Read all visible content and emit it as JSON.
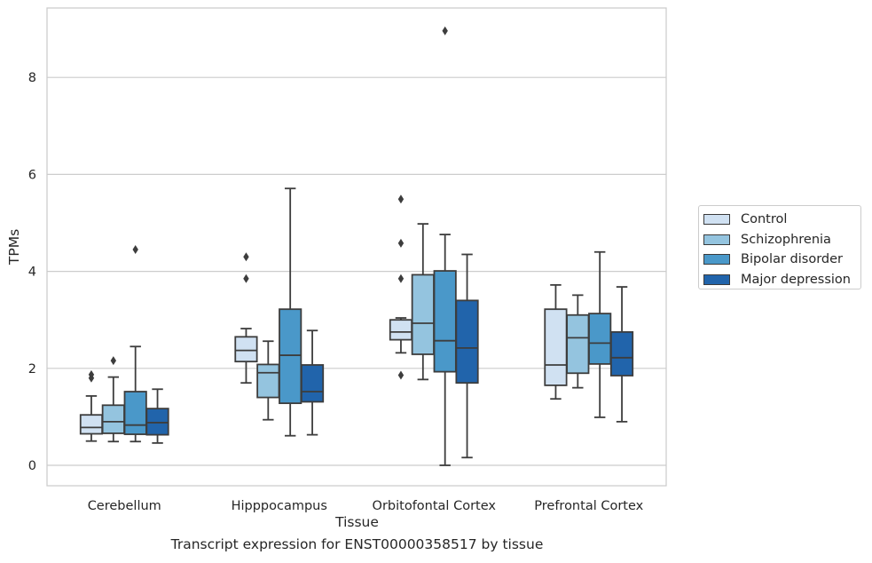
{
  "chart_data": {
    "type": "box",
    "title": "",
    "caption": "Transcript expression for ENST00000358517 by tissue",
    "xlabel": "Tissue",
    "ylabel": "TPMs",
    "ylim": [
      -0.4,
      9.65
    ],
    "yticks": [
      0,
      2,
      4,
      6,
      8
    ],
    "grid": true,
    "legend_position": "right",
    "categories": [
      "Cerebellum",
      "Hipppocampus",
      "Orbitofontal Cortex",
      "Prefrontal Cortex"
    ],
    "series": [
      {
        "name": "Control",
        "color": "#d0e1f2",
        "boxes": [
          {
            "whisker_low": 0.5,
            "q1": 0.65,
            "median": 0.78,
            "q3": 1.04,
            "whisker_high": 1.43,
            "outliers": [
              1.8,
              1.87
            ]
          },
          {
            "whisker_low": 1.7,
            "q1": 2.14,
            "median": 2.37,
            "q3": 2.65,
            "whisker_high": 2.82,
            "outliers": [
              3.85,
              4.3
            ]
          },
          {
            "whisker_low": 2.32,
            "q1": 2.59,
            "median": 2.75,
            "q3": 3.0,
            "whisker_high": 3.04,
            "outliers": [
              1.86,
              3.85,
              4.58,
              5.49
            ]
          },
          {
            "whisker_low": 1.37,
            "q1": 1.65,
            "median": 2.07,
            "q3": 3.22,
            "whisker_high": 3.72,
            "outliers": []
          }
        ]
      },
      {
        "name": "Schizophrenia",
        "color": "#94c4df",
        "boxes": [
          {
            "whisker_low": 0.49,
            "q1": 0.66,
            "median": 0.9,
            "q3": 1.24,
            "whisker_high": 1.82,
            "outliers": [
              2.16
            ]
          },
          {
            "whisker_low": 0.94,
            "q1": 1.4,
            "median": 1.91,
            "q3": 2.08,
            "whisker_high": 2.56,
            "outliers": []
          },
          {
            "whisker_low": 1.77,
            "q1": 2.29,
            "median": 2.93,
            "q3": 3.93,
            "whisker_high": 4.98,
            "outliers": []
          },
          {
            "whisker_low": 1.6,
            "q1": 1.9,
            "median": 2.63,
            "q3": 3.1,
            "whisker_high": 3.51,
            "outliers": []
          }
        ]
      },
      {
        "name": "Bipolar disorder",
        "color": "#4a98c9",
        "boxes": [
          {
            "whisker_low": 0.49,
            "q1": 0.64,
            "median": 0.83,
            "q3": 1.52,
            "whisker_high": 2.45,
            "outliers": [
              4.45
            ]
          },
          {
            "whisker_low": 0.61,
            "q1": 1.28,
            "median": 2.27,
            "q3": 3.22,
            "whisker_high": 5.71,
            "outliers": []
          },
          {
            "whisker_low": 0.0,
            "q1": 1.93,
            "median": 2.57,
            "q3": 4.01,
            "whisker_high": 4.76,
            "outliers": [
              8.96
            ]
          },
          {
            "whisker_low": 0.99,
            "q1": 2.09,
            "median": 2.52,
            "q3": 3.13,
            "whisker_high": 4.4,
            "outliers": []
          }
        ]
      },
      {
        "name": "Major depression",
        "color": "#2164ab",
        "boxes": [
          {
            "whisker_low": 0.46,
            "q1": 0.63,
            "median": 0.88,
            "q3": 1.17,
            "whisker_high": 1.57,
            "outliers": []
          },
          {
            "whisker_low": 0.63,
            "q1": 1.31,
            "median": 1.52,
            "q3": 2.07,
            "whisker_high": 2.78,
            "outliers": []
          },
          {
            "whisker_low": 0.16,
            "q1": 1.7,
            "median": 2.42,
            "q3": 3.4,
            "whisker_high": 4.35,
            "outliers": []
          },
          {
            "whisker_low": 0.9,
            "q1": 1.85,
            "median": 2.22,
            "q3": 2.75,
            "whisker_high": 3.68,
            "outliers": []
          }
        ]
      }
    ]
  }
}
